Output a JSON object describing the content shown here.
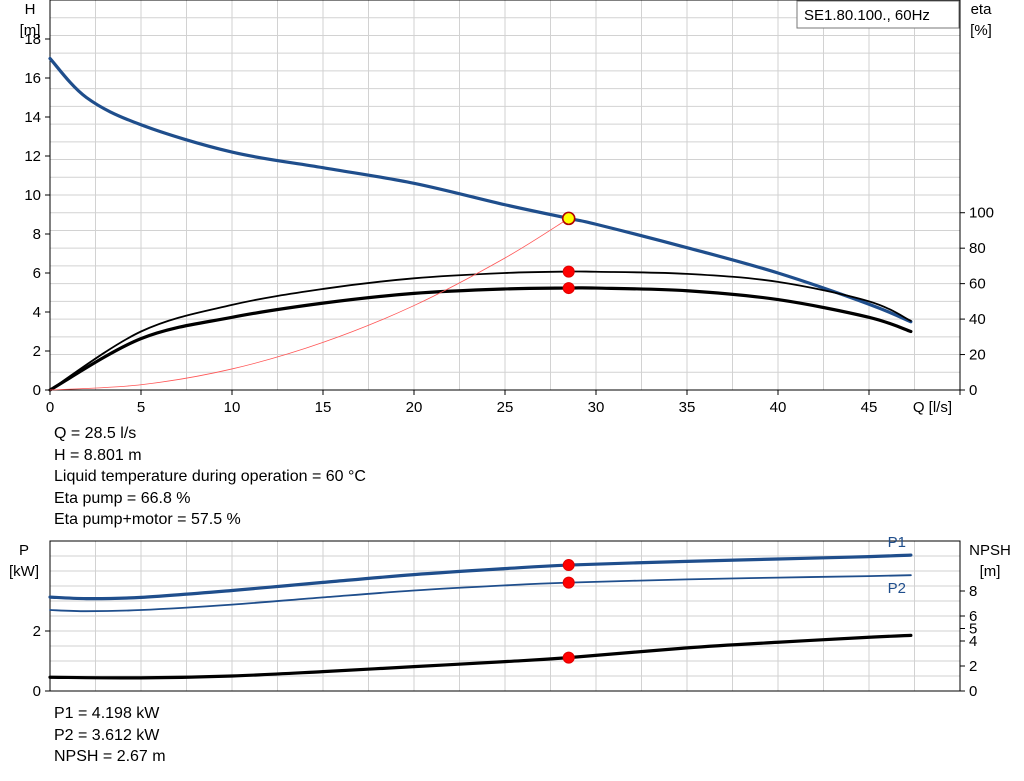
{
  "chart_data": [
    {
      "type": "line",
      "title": "SE1.80.100., 60Hz",
      "xlabel": "Q [l/s]",
      "ylabel_left": [
        "H",
        "[m]"
      ],
      "ylabel_right": [
        "eta",
        "[%]"
      ],
      "xlim": [
        0,
        50
      ],
      "xticks": [
        0,
        5,
        10,
        15,
        20,
        25,
        30,
        35,
        40,
        45
      ],
      "ylim_left": [
        0,
        20
      ],
      "yticks_left": [
        0,
        2,
        4,
        6,
        8,
        10,
        12,
        14,
        16,
        18
      ],
      "yticks_right": [
        0,
        20,
        40,
        60,
        80,
        100
      ],
      "grid": true,
      "series": [
        {
          "axis": "left",
          "color": "#1f4e8c",
          "x": [
            0,
            2,
            5,
            10,
            15,
            20,
            25,
            28.5,
            30,
            35,
            40,
            45,
            47.3
          ],
          "y": [
            17.0,
            15.0,
            13.6,
            12.2,
            11.4,
            10.6,
            9.5,
            8.801,
            8.5,
            7.3,
            6.0,
            4.4,
            3.5
          ]
        },
        {
          "axis": "right",
          "color": "#000000",
          "x": [
            0,
            5,
            10,
            15,
            20,
            25,
            28.5,
            30,
            35,
            40,
            45,
            47.3
          ],
          "y": [
            0,
            33,
            48,
            57,
            63,
            66,
            66.8,
            66.7,
            65.5,
            61,
            50,
            39
          ]
        },
        {
          "axis": "right",
          "color": "#000000",
          "x": [
            0,
            5,
            10,
            15,
            20,
            25,
            28.5,
            30,
            35,
            40,
            45,
            47.3
          ],
          "y": [
            0,
            29,
            41,
            49,
            54.5,
            57,
            57.5,
            57.5,
            56,
            51,
            41,
            33
          ]
        },
        {
          "axis": "left",
          "color": "#ff5555",
          "x": [
            0,
            5,
            10,
            15,
            20,
            25,
            28.5
          ],
          "y": [
            0,
            0.27,
            1.08,
            2.44,
            4.33,
            6.77,
            8.801
          ]
        }
      ],
      "operating_points": [
        {
          "axis": "left",
          "x": 28.5,
          "y": 8.801,
          "color": "#ffff00"
        },
        {
          "axis": "right",
          "x": 28.5,
          "y": 66.8,
          "color": "#ff0000"
        },
        {
          "axis": "right",
          "x": 28.5,
          "y": 57.5,
          "color": "#ff0000"
        }
      ]
    },
    {
      "type": "line",
      "ylabel_left": [
        "P",
        "[kW]"
      ],
      "ylabel_right": [
        "NPSH",
        "[m]"
      ],
      "xlim": [
        0,
        50
      ],
      "ylim_left": [
        0,
        5
      ],
      "yticks_left": [
        0,
        2
      ],
      "ylim_right": [
        0,
        12
      ],
      "yticks_right": [
        0,
        2,
        4,
        5,
        6,
        8
      ],
      "grid": true,
      "series": [
        {
          "name": "P1",
          "axis": "left",
          "color": "#1f4e8c",
          "x": [
            0,
            2,
            5,
            10,
            15,
            20,
            25,
            28.5,
            35,
            40,
            45,
            47.3
          ],
          "y": [
            3.13,
            3.08,
            3.12,
            3.35,
            3.62,
            3.88,
            4.08,
            4.198,
            4.32,
            4.4,
            4.48,
            4.53
          ]
        },
        {
          "name": "P2",
          "axis": "left",
          "color": "#1f4e8c",
          "x": [
            0,
            2,
            5,
            10,
            15,
            20,
            25,
            28.5,
            35,
            40,
            45,
            47.3
          ],
          "y": [
            2.7,
            2.66,
            2.7,
            2.88,
            3.12,
            3.35,
            3.52,
            3.612,
            3.72,
            3.78,
            3.83,
            3.86
          ]
        },
        {
          "axis": "right",
          "color": "#000000",
          "x": [
            0,
            5,
            10,
            15,
            20,
            25,
            28.5,
            35,
            40,
            45,
            47.3
          ],
          "y": [
            1.1,
            1.05,
            1.2,
            1.55,
            1.95,
            2.35,
            2.67,
            3.45,
            3.9,
            4.3,
            4.45
          ]
        }
      ],
      "operating_points": [
        {
          "axis": "left",
          "x": 28.5,
          "y": 4.198,
          "color": "#ff0000"
        },
        {
          "axis": "left",
          "x": 28.5,
          "y": 3.612,
          "color": "#ff0000"
        },
        {
          "axis": "right",
          "x": 28.5,
          "y": 2.67,
          "color": "#ff0000"
        }
      ]
    }
  ],
  "readout_top": [
    "Q = 28.5 l/s",
    "H = 8.801 m",
    "Liquid temperature during operation = 60 °C",
    "Eta pump = 66.8 %",
    "Eta pump+motor = 57.5 %"
  ],
  "readout_bottom": [
    "P1 = 4.198 kW",
    "P2 = 3.612 kW",
    "NPSH = 2.67 m"
  ]
}
